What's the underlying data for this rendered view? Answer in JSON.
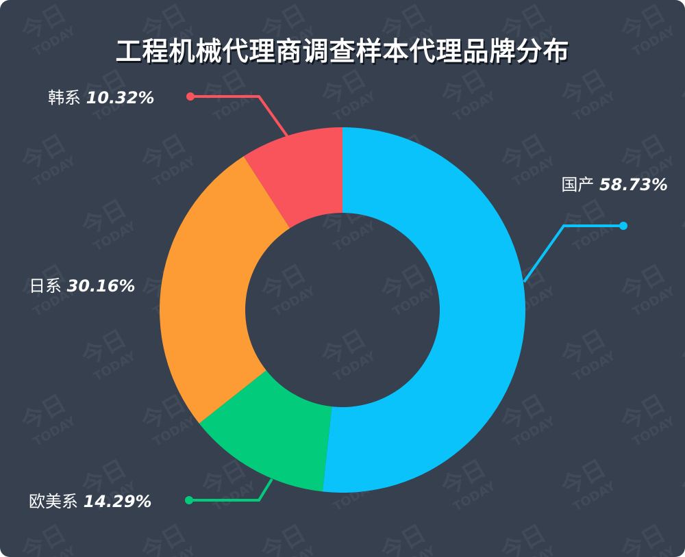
{
  "chart_data": {
    "type": "pie",
    "title": "工程机械代理商调查样本代理品牌分布",
    "donut": true,
    "slices": [
      {
        "label": "国产",
        "value": 58.73,
        "value_label": "58.73%",
        "color": "#0bc3fb"
      },
      {
        "label": "欧美系",
        "value": 14.29,
        "value_label": "14.29%",
        "color": "#02cc7b"
      },
      {
        "label": "日系",
        "value": 30.16,
        "value_label": "30.16%",
        "color": "#fd9c35"
      },
      {
        "label": "韩系",
        "value": 10.32,
        "value_label": "10.32%",
        "color": "#f9545c"
      }
    ],
    "background": "#36404f"
  },
  "watermark": {
    "glyph": "今日",
    "text": "TODAY"
  }
}
